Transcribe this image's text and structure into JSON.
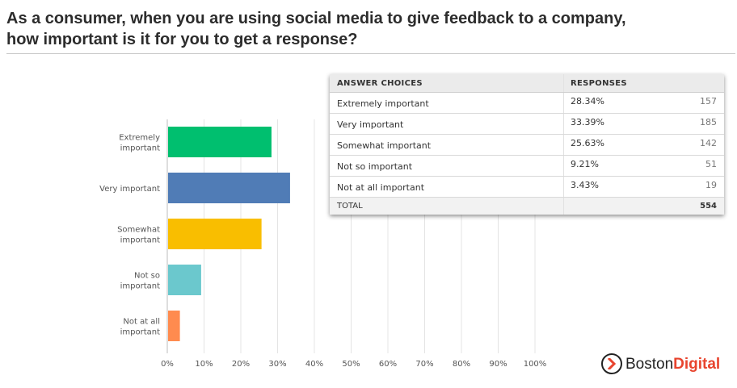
{
  "title": {
    "line1": "As a consumer, when you are using social media to give feedback to a company,",
    "line2": "how important is it for you to get a response?"
  },
  "chart_data": {
    "type": "bar",
    "orientation": "horizontal",
    "categories": [
      [
        "Extremely",
        "important"
      ],
      [
        "Very important"
      ],
      [
        "Somewhat",
        "important"
      ],
      [
        "Not so",
        "important"
      ],
      [
        "Not at all",
        "important"
      ]
    ],
    "values": [
      28.34,
      33.39,
      25.63,
      9.21,
      3.43
    ],
    "colors": [
      "#00bf6f",
      "#507cb6",
      "#f9be00",
      "#6bc8cd",
      "#ff8b4f"
    ],
    "xlim": [
      0,
      100
    ],
    "xticks": [
      "0%",
      "10%",
      "20%",
      "30%",
      "40%",
      "50%",
      "60%",
      "70%",
      "80%",
      "90%",
      "100%"
    ],
    "grid": true,
    "legend": "none"
  },
  "table": {
    "headers": {
      "choice": "ANSWER CHOICES",
      "responses": "RESPONSES"
    },
    "rows": [
      {
        "choice": "Extremely important",
        "percent": "28.34%",
        "count": "157"
      },
      {
        "choice": "Very important",
        "percent": "33.39%",
        "count": "185"
      },
      {
        "choice": "Somewhat important",
        "percent": "25.63%",
        "count": "142"
      },
      {
        "choice": "Not so important",
        "percent": "9.21%",
        "count": "51"
      },
      {
        "choice": "Not at all important",
        "percent": "3.43%",
        "count": "19"
      }
    ],
    "total": {
      "label": "TOTAL",
      "count": "554"
    }
  },
  "logo": {
    "text_plain": "Boston",
    "text_bold": "Digital",
    "icon": "chevron-right-icon"
  }
}
